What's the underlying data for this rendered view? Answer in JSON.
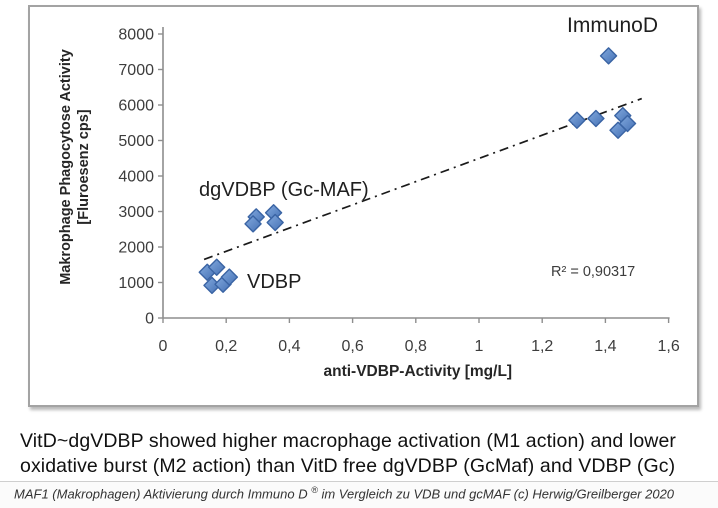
{
  "page": {
    "summary_text": "VitD~dgVDBP showed higher macrophage activation (M1 action) and lower oxidative burst (M2 action) than VitD free dgVDBP (GcMaf) and VDBP (Gc)",
    "caption": {
      "pre": "MAF1 (Makrophagen) Aktivierung durch Immuno D ",
      "sup": "®",
      "post": " im Vergleich zu VDB und gcMAF (c) Herwig/Greilberger 2020"
    }
  },
  "chart_data": {
    "type": "scatter",
    "title": "",
    "xlabel": "anti-VDBP-Activity [mg/L]",
    "ylabel_line1": "Makrophage Phagocytose Activity",
    "ylabel_line2": "[Fluroesenz cps]",
    "xlim": [
      0,
      1.6
    ],
    "ylim": [
      0,
      8000
    ],
    "grid": false,
    "legend": "none (direct point labels)",
    "x_ticks": [
      {
        "v": 0.0,
        "label": "0"
      },
      {
        "v": 0.2,
        "label": "0,2"
      },
      {
        "v": 0.4,
        "label": "0,4"
      },
      {
        "v": 0.6,
        "label": "0,6"
      },
      {
        "v": 0.8,
        "label": "0,8"
      },
      {
        "v": 1.0,
        "label": "1"
      },
      {
        "v": 1.2,
        "label": "1,2"
      },
      {
        "v": 1.4,
        "label": "1,4"
      },
      {
        "v": 1.6,
        "label": "1,6"
      }
    ],
    "y_ticks": [
      {
        "v": 0,
        "label": "0"
      },
      {
        "v": 1000,
        "label": "1000"
      },
      {
        "v": 2000,
        "label": "2000"
      },
      {
        "v": 3000,
        "label": "3000"
      },
      {
        "v": 4000,
        "label": "4000"
      },
      {
        "v": 5000,
        "label": "5000"
      },
      {
        "v": 6000,
        "label": "6000"
      },
      {
        "v": 7000,
        "label": "7000"
      },
      {
        "v": 8000,
        "label": "8000"
      }
    ],
    "series": [
      {
        "name": "VDBP",
        "label": "VDBP",
        "points": [
          [
            0.14,
            1290
          ],
          [
            0.17,
            1430
          ],
          [
            0.155,
            920
          ],
          [
            0.19,
            950
          ],
          [
            0.21,
            1150
          ]
        ]
      },
      {
        "name": "dgVDBP (Gc-MAF)",
        "label": "dgVDBP (Gc-MAF)",
        "points": [
          [
            0.295,
            2850
          ],
          [
            0.285,
            2650
          ],
          [
            0.35,
            2965
          ],
          [
            0.355,
            2690
          ]
        ]
      },
      {
        "name": "ImmunoD",
        "label": "ImmunoD",
        "points": [
          [
            1.41,
            7385
          ],
          [
            1.31,
            5570
          ],
          [
            1.37,
            5620
          ],
          [
            1.455,
            5700
          ],
          [
            1.47,
            5480
          ],
          [
            1.44,
            5290
          ]
        ]
      }
    ],
    "trendline": {
      "style": "dash-dot",
      "x1": 0.13,
      "y1": 1650,
      "x2": 1.515,
      "y2": 6180
    },
    "r_squared_label": "R² = 0,90317",
    "marker": {
      "shape": "diamond",
      "fill_dark": "#4470b4",
      "fill_light": "#83aade",
      "stroke": "#3a64a4"
    },
    "colors": {
      "axis": "#8e8e8e",
      "tick_text": "#3d3d3d",
      "title_text": "#262626",
      "label_text": "#1f1f1f",
      "trendline": "#1a1a1a"
    }
  }
}
